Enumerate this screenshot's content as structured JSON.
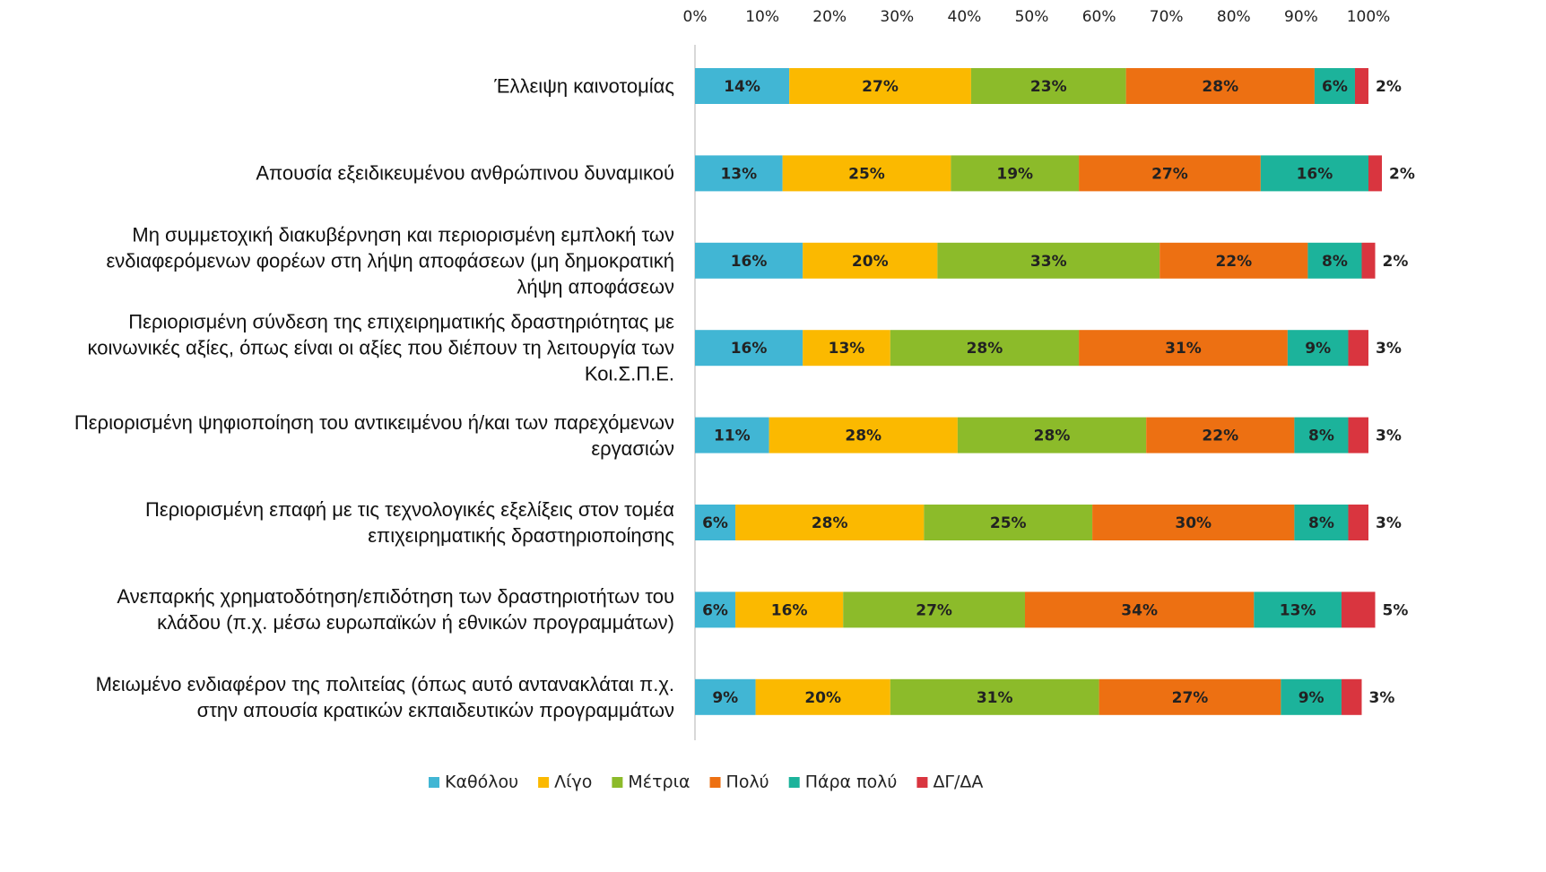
{
  "chart_data": {
    "type": "stacked-barh",
    "categories": [
      "Έλλειψη καινοτομίας",
      "Απουσία εξειδικευμένου ανθρώπινου δυναμικού",
      "Μη συμμετοχική διακυβέρνηση και περιορισμένη εμπλοκή των\nενδιαφερόμενων φορέων στη λήψη αποφάσεων (μη δημοκρατική\nλήψη αποφάσεων",
      "Περιορισμένη σύνδεση της επιχειρηματικής δραστηριότητας με\nκοινωνικές αξίες, όπως είναι οι αξίες που διέπουν τη λειτουργία των\nΚοι.Σ.Π.Ε.",
      "Περιορισμένη ψηφιοποίηση του αντικειμένου ή/και των παρεχόμενων\nεργασιών",
      "Περιορισμένη επαφή με τις τεχνολογικές εξελίξεις στον τομέα\nεπιχειρηματικής δραστηριοποίησης",
      "Ανεπαρκής χρηματοδότηση/επιδότηση των δραστηριοτήτων του\nκλάδου (π.χ. μέσω ευρωπαϊκών ή εθνικών προγραμμάτων)",
      "Μειωμένο ενδιαφέρον της πολιτείας (όπως αυτό αντανακλάται π.χ.\nστην απουσία κρατικών εκπαιδευτικών προγραμμάτων"
    ],
    "series": [
      {
        "name": "Καθόλου",
        "color": "#41b6d4",
        "values": [
          14,
          13,
          16,
          16,
          11,
          6,
          6,
          9
        ],
        "value_labels": [
          "14%",
          "13%",
          "16%",
          "16%",
          "11%",
          "6%",
          "6%",
          "9%"
        ]
      },
      {
        "name": "Λίγο",
        "color": "#fbb900",
        "values": [
          27,
          25,
          20,
          13,
          28,
          28,
          16,
          20
        ],
        "value_labels": [
          "27%",
          "25%",
          "20%",
          "13%",
          "28%",
          "28%",
          "16%",
          "20%"
        ]
      },
      {
        "name": "Μέτρια",
        "color": "#8cbb2a",
        "values": [
          23,
          19,
          33,
          28,
          28,
          25,
          27,
          31
        ],
        "value_labels": [
          "23%",
          "19%",
          "33%",
          "28%",
          "28%",
          "25%",
          "27%",
          "31%"
        ]
      },
      {
        "name": "Πολύ",
        "color": "#ed7012",
        "values": [
          28,
          27,
          22,
          31,
          22,
          30,
          34,
          27
        ],
        "value_labels": [
          "28%",
          "27%",
          "22%",
          "31%",
          "22%",
          "30%",
          "34%",
          "27%"
        ]
      },
      {
        "name": "Πάρα πολύ",
        "color": "#1cb39b",
        "values": [
          6,
          16,
          8,
          9,
          8,
          8,
          13,
          9
        ],
        "value_labels": [
          "6%",
          "16%",
          "8%",
          "9%",
          "8%",
          "8%",
          "13%",
          "9%"
        ]
      },
      {
        "name": "ΔΓ/ΔΑ",
        "color": "#d9353f",
        "values": [
          2,
          2,
          2,
          3,
          3,
          3,
          5,
          3
        ],
        "value_labels": [
          "2%",
          "2%",
          "2%",
          "3%",
          "3%",
          "3%",
          "5%",
          "3%"
        ]
      }
    ],
    "xlim": [
      0,
      100
    ],
    "xticks": [
      {
        "value": 0,
        "label": "0%"
      },
      {
        "value": 10,
        "label": "10%"
      },
      {
        "value": 20,
        "label": "20%"
      },
      {
        "value": 30,
        "label": "30%"
      },
      {
        "value": 40,
        "label": "40%"
      },
      {
        "value": 50,
        "label": "50%"
      },
      {
        "value": 60,
        "label": "60%"
      },
      {
        "value": 70,
        "label": "70%"
      },
      {
        "value": 80,
        "label": "80%"
      },
      {
        "value": 90,
        "label": "90%"
      },
      {
        "value": 100,
        "label": "100%"
      }
    ],
    "legend": "bottom"
  }
}
